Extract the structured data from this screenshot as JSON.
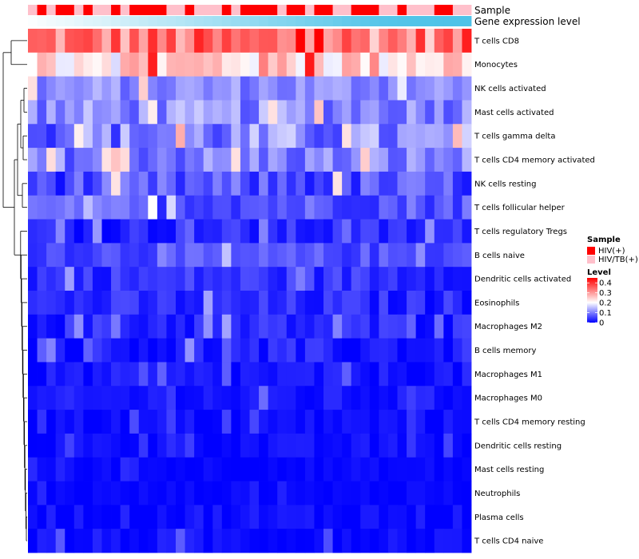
{
  "chart_data": {
    "type": "heatmap",
    "annotation_tracks": [
      "Sample",
      "Gene expression level"
    ],
    "sample_legend": {
      "title": "Sample",
      "entries": [
        {
          "label": "HIV(+)",
          "color": "#ff0000"
        },
        {
          "label": "HIV/TB(+)",
          "color": "#ffc0cb"
        }
      ]
    },
    "level_legend": {
      "title": "Level",
      "ticks": [
        "0.4",
        "0.3",
        "0.2",
        "0.1",
        "0"
      ],
      "tick_values": [
        0.4,
        0.3,
        0.2,
        0.1,
        0
      ],
      "range": [
        0,
        0.45
      ],
      "colors": {
        "low": "#0000ff",
        "mid": "#ffffff",
        "high": "#ff0000"
      }
    },
    "sample_groups": [
      1,
      0,
      1,
      0,
      0,
      1,
      0,
      1,
      1,
      0,
      1,
      0,
      0,
      0,
      0,
      1,
      1,
      0,
      1,
      1,
      1,
      0,
      1,
      0,
      0,
      0,
      0,
      1,
      0,
      0,
      1,
      0,
      0,
      1,
      1,
      0,
      0,
      0,
      1,
      1,
      0,
      1,
      1,
      1,
      0,
      0,
      1,
      1
    ],
    "gene_level": [
      0.02,
      0.05,
      0.08,
      0.1,
      0.12,
      0.15,
      0.18,
      0.2,
      0.22,
      0.25,
      0.28,
      0.3,
      0.33,
      0.36,
      0.38,
      0.4,
      0.42,
      0.45,
      0.48,
      0.5,
      0.52,
      0.55,
      0.58,
      0.6,
      0.62,
      0.65,
      0.68,
      0.7,
      0.72,
      0.75,
      0.78,
      0.8,
      0.82,
      0.85,
      0.88,
      0.9,
      0.92,
      0.95,
      0.96,
      0.97,
      0.98,
      0.985,
      0.99,
      0.99,
      0.995,
      1,
      1,
      1
    ],
    "rows": [
      {
        "name": "T cells CD8",
        "mean": 0.33,
        "spread": 0.09
      },
      {
        "name": "Monocytes",
        "mean": 0.25,
        "spread": 0.08
      },
      {
        "name": "NK cells activated",
        "mean": 0.11,
        "spread": 0.04
      },
      {
        "name": "Mast cells activated",
        "mean": 0.11,
        "spread": 0.05
      },
      {
        "name": "T cells gamma delta",
        "mean": 0.1,
        "spread": 0.07
      },
      {
        "name": "T cells CD4 memory activated",
        "mean": 0.1,
        "spread": 0.05
      },
      {
        "name": "NK cells resting",
        "mean": 0.06,
        "spread": 0.05
      },
      {
        "name": "T cells follicular helper",
        "mean": 0.07,
        "spread": 0.04
      },
      {
        "name": "T cells regulatory  Tregs",
        "mean": 0.03,
        "spread": 0.03
      },
      {
        "name": "B cells naive",
        "mean": 0.06,
        "spread": 0.03
      },
      {
        "name": "Dendritic cells activated",
        "mean": 0.04,
        "spread": 0.03
      },
      {
        "name": "Eosinophils",
        "mean": 0.03,
        "spread": 0.03
      },
      {
        "name": "Macrophages M2",
        "mean": 0.03,
        "spread": 0.03
      },
      {
        "name": "B cells memory",
        "mean": 0.02,
        "spread": 0.03
      },
      {
        "name": "Macrophages M1",
        "mean": 0.015,
        "spread": 0.02
      },
      {
        "name": "Macrophages M0",
        "mean": 0.015,
        "spread": 0.02
      },
      {
        "name": "T cells CD4 memory resting",
        "mean": 0.01,
        "spread": 0.015
      },
      {
        "name": "Dendritic cells resting",
        "mean": 0.01,
        "spread": 0.015
      },
      {
        "name": "Mast cells resting",
        "mean": 0.005,
        "spread": 0.01
      },
      {
        "name": "Neutrophils",
        "mean": 0.005,
        "spread": 0.008
      },
      {
        "name": "Plasma cells",
        "mean": 0.01,
        "spread": 0.02
      },
      {
        "name": "T cells CD4 naive",
        "mean": 0.01,
        "spread": 0.02
      }
    ]
  }
}
